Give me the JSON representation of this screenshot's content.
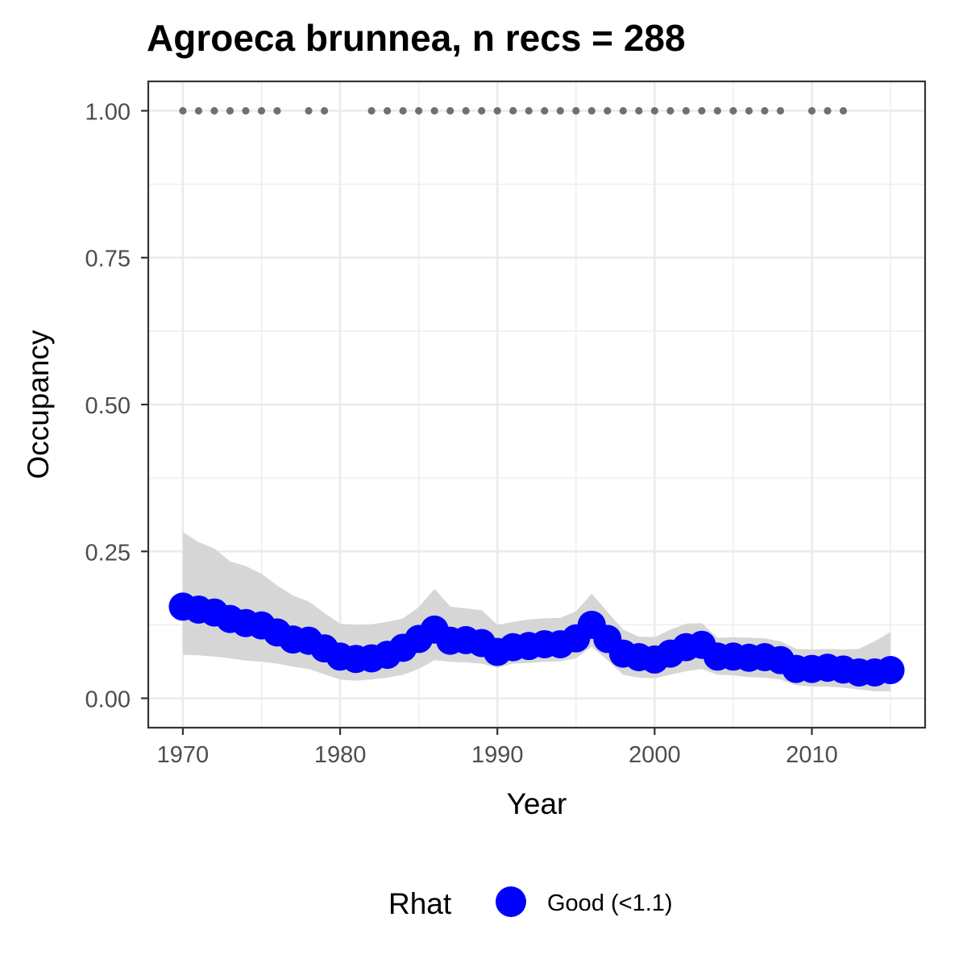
{
  "chart_data": {
    "type": "line",
    "title": "Agroeca brunnea, n recs = 288",
    "xlabel": "Year",
    "ylabel": "Occupancy",
    "xlim": [
      1967.8,
      2017.2
    ],
    "ylim": [
      -0.05,
      1.05
    ],
    "x_ticks": [
      1970,
      1980,
      1990,
      2000,
      2010
    ],
    "x_tick_labels": [
      "1970",
      "1980",
      "1990",
      "2000",
      "2010"
    ],
    "y_ticks": [
      0,
      0.25,
      0.5,
      0.75,
      1
    ],
    "y_tick_labels": [
      "0.00",
      "0.25",
      "0.50",
      "0.75",
      "1.00"
    ],
    "grid": true,
    "legend": {
      "title": "Rhat",
      "position": "bottom",
      "entries": [
        {
          "label": "Good (<1.1)",
          "color": "#0000ff"
        }
      ]
    },
    "colors": {
      "series": "#0000ff",
      "ribbon": "#d6d6d6",
      "records": "#707070",
      "panel_border": "#333333",
      "grid": "#ebebeb",
      "tick_text": "#4d4d4d"
    },
    "series": [
      {
        "name": "Good (<1.1)",
        "x": [
          1970,
          1971,
          1972,
          1973,
          1974,
          1975,
          1976,
          1977,
          1978,
          1979,
          1980,
          1981,
          1982,
          1983,
          1984,
          1985,
          1986,
          1987,
          1988,
          1989,
          1990,
          1991,
          1992,
          1993,
          1994,
          1995,
          1996,
          1997,
          1998,
          1999,
          2000,
          2001,
          2002,
          2003,
          2004,
          2005,
          2006,
          2007,
          2008,
          2009,
          2010,
          2011,
          2012,
          2013,
          2014,
          2015
        ],
        "values": [
          0.156,
          0.151,
          0.146,
          0.135,
          0.128,
          0.124,
          0.112,
          0.1,
          0.098,
          0.085,
          0.071,
          0.067,
          0.068,
          0.074,
          0.086,
          0.101,
          0.117,
          0.098,
          0.099,
          0.094,
          0.079,
          0.087,
          0.089,
          0.092,
          0.092,
          0.102,
          0.125,
          0.101,
          0.076,
          0.07,
          0.066,
          0.076,
          0.087,
          0.091,
          0.071,
          0.071,
          0.069,
          0.07,
          0.065,
          0.05,
          0.05,
          0.052,
          0.049,
          0.044,
          0.044,
          0.048
        ],
        "lower": [
          0.074,
          0.073,
          0.071,
          0.068,
          0.064,
          0.062,
          0.059,
          0.054,
          0.05,
          0.041,
          0.032,
          0.03,
          0.032,
          0.035,
          0.04,
          0.05,
          0.065,
          0.062,
          0.061,
          0.059,
          0.052,
          0.059,
          0.06,
          0.062,
          0.063,
          0.068,
          0.088,
          0.065,
          0.04,
          0.035,
          0.034,
          0.04,
          0.046,
          0.05,
          0.04,
          0.039,
          0.036,
          0.035,
          0.032,
          0.022,
          0.02,
          0.02,
          0.018,
          0.015,
          0.012,
          0.012
        ],
        "upper": [
          0.283,
          0.266,
          0.255,
          0.233,
          0.225,
          0.212,
          0.192,
          0.175,
          0.165,
          0.145,
          0.127,
          0.125,
          0.126,
          0.13,
          0.136,
          0.155,
          0.186,
          0.156,
          0.153,
          0.15,
          0.125,
          0.13,
          0.134,
          0.136,
          0.137,
          0.148,
          0.178,
          0.147,
          0.117,
          0.105,
          0.104,
          0.117,
          0.127,
          0.128,
          0.103,
          0.104,
          0.103,
          0.102,
          0.097,
          0.084,
          0.083,
          0.084,
          0.083,
          0.084,
          0.097,
          0.113
        ]
      }
    ],
    "record_years": {
      "y": 1,
      "x": [
        1970,
        1971,
        1972,
        1973,
        1974,
        1975,
        1976,
        1978,
        1979,
        1982,
        1983,
        1984,
        1985,
        1986,
        1987,
        1988,
        1989,
        1990,
        1991,
        1992,
        1993,
        1994,
        1995,
        1996,
        1997,
        1998,
        1999,
        2000,
        2001,
        2002,
        2003,
        2004,
        2005,
        2006,
        2007,
        2008,
        2010,
        2011,
        2012
      ]
    }
  }
}
